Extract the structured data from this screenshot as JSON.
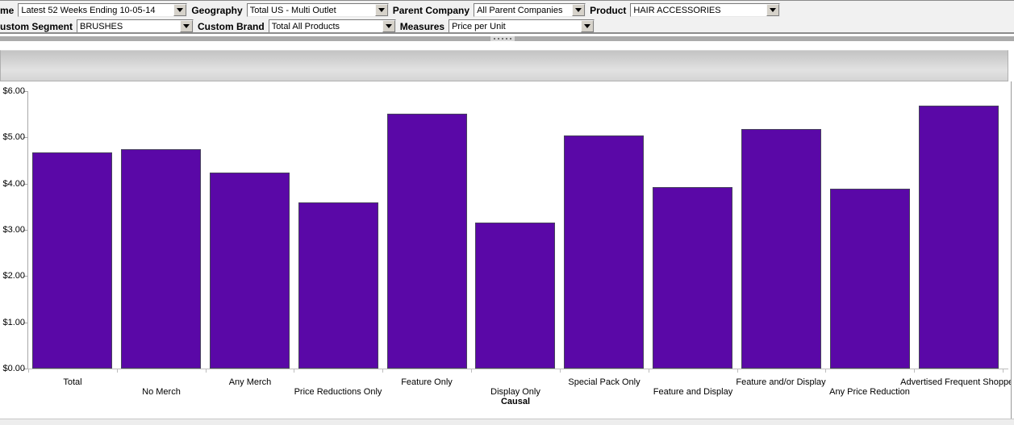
{
  "filters": {
    "time": {
      "label": "me",
      "value": "Latest 52 Weeks Ending 10-05-14"
    },
    "geography": {
      "label": "Geography",
      "value": "Total US - Multi Outlet"
    },
    "parent_company": {
      "label": "Parent Company",
      "value": "All Parent Companies"
    },
    "product": {
      "label": "Product",
      "value": "HAIR ACCESSORIES"
    },
    "custom_segment": {
      "label": "ustom Segment",
      "value": "BRUSHES"
    },
    "custom_brand": {
      "label": "Custom Brand",
      "value": "Total All Products"
    },
    "measures": {
      "label": "Measures",
      "value": "Price per Unit"
    }
  },
  "chart_data": {
    "type": "bar",
    "categories": [
      "Total",
      "No Merch",
      "Any Merch",
      "Price Reductions Only",
      "Feature Only",
      "Display Only",
      "Special Pack Only",
      "Feature and Display",
      "Feature and/or Display",
      "Any Price Reduction",
      "Advertised Frequent Shopper"
    ],
    "values": [
      4.68,
      4.75,
      4.24,
      3.6,
      5.51,
      3.15,
      5.04,
      3.93,
      5.18,
      3.89,
      5.68
    ],
    "title": "",
    "xlabel": "Causal",
    "ylabel": "",
    "ylim": [
      0,
      6
    ],
    "ytick_labels": [
      "$0.00",
      "$1.00",
      "$2.00",
      "$3.00",
      "$4.00",
      "$5.00",
      "$6.00"
    ],
    "grid": false,
    "legend": false,
    "bar_color": "#5a08a7",
    "bar_border_color": "#46415c",
    "axis_color": "#a8a8a8",
    "xaxis_color": "#bdbdbd"
  }
}
